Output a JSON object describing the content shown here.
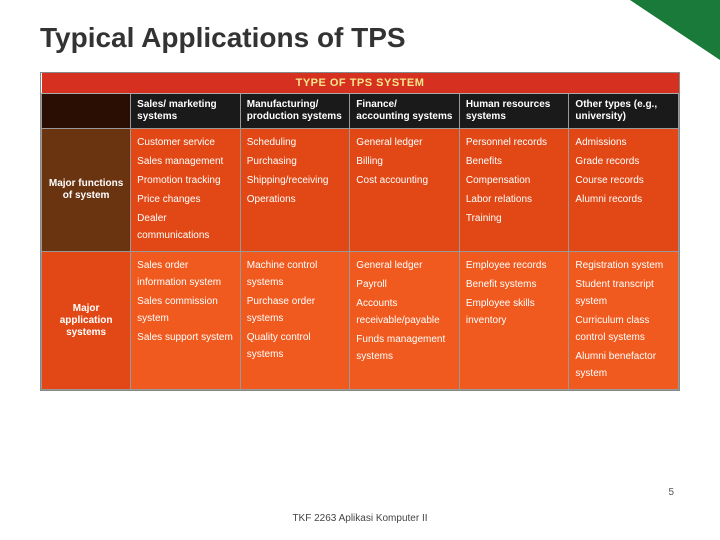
{
  "slide": {
    "title": "Typical Applications of TPS",
    "page_number": "5",
    "footer": "TKF 2263   Aplikasi Komputer II",
    "corner_color": "#1a7a3a",
    "title_color": "#333333"
  },
  "table": {
    "banner": "TYPE OF TPS SYSTEM",
    "banner_bg": "#d63020",
    "banner_fg": "#f5e68a",
    "col_widths": [
      "14%",
      "17.2%",
      "17.2%",
      "17.2%",
      "17.2%",
      "17.2%"
    ],
    "column_headers": [
      {
        "label": "",
        "bg": "#2a0e04"
      },
      {
        "label": "Sales/ marketing systems",
        "bg": "#1a1a1a"
      },
      {
        "label": "Manufacturing/ production systems",
        "bg": "#1a1a1a"
      },
      {
        "label": "Finance/ accounting systems",
        "bg": "#1a1a1a"
      },
      {
        "label": "Human resources systems",
        "bg": "#1a1a1a"
      },
      {
        "label": "Other types (e.g., university)",
        "bg": "#1a1a1a"
      }
    ],
    "row_labels": [
      {
        "label": "Major functions of system",
        "bg": "#6a3410"
      },
      {
        "label": "Major application systems",
        "bg": "#e24815"
      }
    ],
    "section_bgs": {
      "row1": [
        "#e24815",
        "#e24815",
        "#e24815",
        "#e24815",
        "#e24815"
      ],
      "row2": [
        "#f05a1e",
        "#f05a1e",
        "#f05a1e",
        "#f05a1e",
        "#f05a1e"
      ]
    },
    "body": {
      "row1": [
        [
          "Customer service",
          "Sales management",
          "Promotion tracking",
          "Price changes",
          "Dealer communications"
        ],
        [
          "Scheduling",
          "Purchasing",
          "Shipping/receiving",
          "Operations"
        ],
        [
          "General ledger",
          "Billing",
          "Cost accounting"
        ],
        [
          "Personnel records",
          "Benefits",
          "Compensation",
          "Labor relations",
          "Training"
        ],
        [
          "Admissions",
          "Grade records",
          "Course records",
          "Alumni records"
        ]
      ],
      "row2": [
        [
          "Sales order information system",
          "Sales commission system",
          "Sales support system"
        ],
        [
          "Machine control systems",
          "Purchase order systems",
          "Quality control systems"
        ],
        [
          "General ledger",
          "Payroll",
          "Accounts receivable/payable",
          "Funds management systems"
        ],
        [
          "Employee records",
          "Benefit systems",
          "Employee skills inventory"
        ],
        [
          "Registration system",
          "Student transcript system",
          "Curriculum class control systems",
          "Alumni benefactor system"
        ]
      ]
    }
  }
}
